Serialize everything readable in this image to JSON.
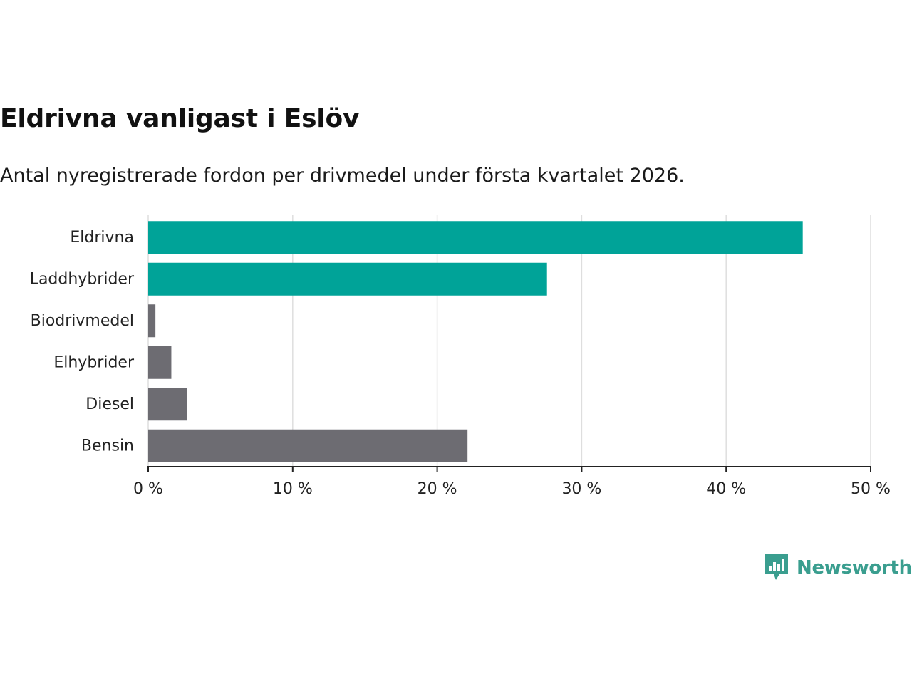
{
  "header": {
    "title": "Eldrivna vanligast i Eslöv",
    "subtitle": "Antal nyregistrerade fordon per drivmedel under första kvartalet 2026."
  },
  "chart_data": {
    "type": "bar",
    "orientation": "horizontal",
    "categories": [
      "Eldrivna",
      "Laddhybrider",
      "Biodrivmedel",
      "Elhybrider",
      "Diesel",
      "Bensin"
    ],
    "values": [
      45.3,
      27.6,
      0.5,
      1.6,
      2.7,
      22.1
    ],
    "unit": "%",
    "bar_colors": [
      "#00a398",
      "#00a398",
      "#6d6c72",
      "#6d6c72",
      "#6d6c72",
      "#6d6c72"
    ],
    "xlim": [
      0,
      50
    ],
    "xticks": [
      0,
      10,
      20,
      30,
      40,
      50
    ],
    "xtick_labels": [
      "0 %",
      "10 %",
      "20 %",
      "30 %",
      "40 %",
      "50 %"
    ],
    "grid": true,
    "title": "Eldrivna vanligast i Eslöv",
    "xlabel": "",
    "ylabel": ""
  },
  "branding": {
    "name": "Newsworthy",
    "icon": "newsworthy-logo-icon",
    "color": "#3a9e8f"
  }
}
